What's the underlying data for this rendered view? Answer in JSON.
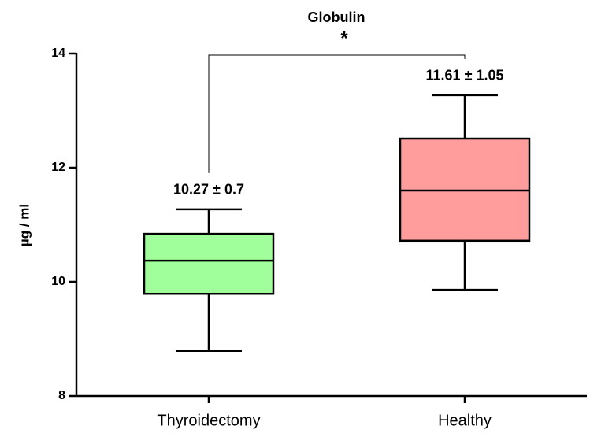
{
  "chart_data": {
    "type": "box",
    "title": "Globulin",
    "ylabel": "µg / ml",
    "categories": [
      "Thyroidectomy",
      "Healthy"
    ],
    "boxes": [
      {
        "min": 8.79,
        "q1": 9.79,
        "median": 10.37,
        "q3": 10.84,
        "max": 11.27
      },
      {
        "min": 9.86,
        "q1": 10.72,
        "median": 11.6,
        "q3": 12.51,
        "max": 13.27
      }
    ],
    "colors": [
      "#a0ff9a",
      "#ff9d9d"
    ],
    "box_labels": [
      "10.27 ± 0.7",
      "11.61 ± 1.05"
    ],
    "significance": "*",
    "ylim": [
      8,
      14
    ],
    "yticks": [
      8,
      10,
      12,
      14
    ],
    "grid": false
  }
}
